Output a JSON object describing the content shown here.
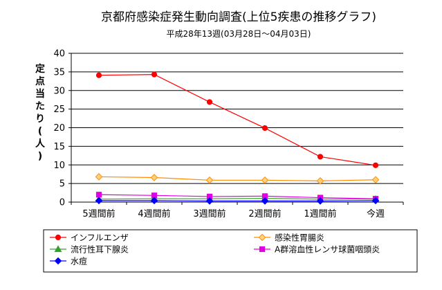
{
  "chart_data": {
    "type": "line",
    "title": "京都府感染症発生動向調査(上位5疾患の推移グラフ)",
    "subtitle": "平成28年13週(03月28日～04月03日)",
    "ylabel": "定点当たり(人)",
    "xlabel": "",
    "ylim": [
      0,
      40
    ],
    "yticks": [
      "0",
      "5",
      "10",
      "15",
      "20",
      "25",
      "30",
      "35",
      "40"
    ],
    "categories": [
      "5週間前",
      "4週間前",
      "3週間前",
      "2週間前",
      "1週間前",
      "今週"
    ],
    "grid": true,
    "legend_position": "bottom",
    "series": [
      {
        "name": "インフルエンザ",
        "color": "#ff0000",
        "marker": "circle",
        "values": [
          34.1,
          34.3,
          26.9,
          19.9,
          12.2,
          9.9
        ]
      },
      {
        "name": "感染性胃腸炎",
        "color": "#ff8c00",
        "marker": "diamond",
        "values": [
          6.8,
          6.6,
          5.9,
          5.9,
          5.7,
          6.0
        ]
      },
      {
        "name": "流行性耳下腺炎",
        "color": "#33a02c",
        "marker": "triangle",
        "values": [
          0.8,
          0.9,
          0.9,
          1.0,
          0.8,
          0.8
        ]
      },
      {
        "name": "A群溶血性レンサ球菌咽頭炎",
        "color": "#e100e1",
        "marker": "square",
        "values": [
          2.0,
          1.8,
          1.5,
          1.6,
          1.2,
          0.9
        ]
      },
      {
        "name": "水痘",
        "color": "#0000ff",
        "marker": "diamond",
        "values": [
          0.4,
          0.4,
          0.3,
          0.3,
          0.3,
          0.4
        ]
      }
    ]
  }
}
